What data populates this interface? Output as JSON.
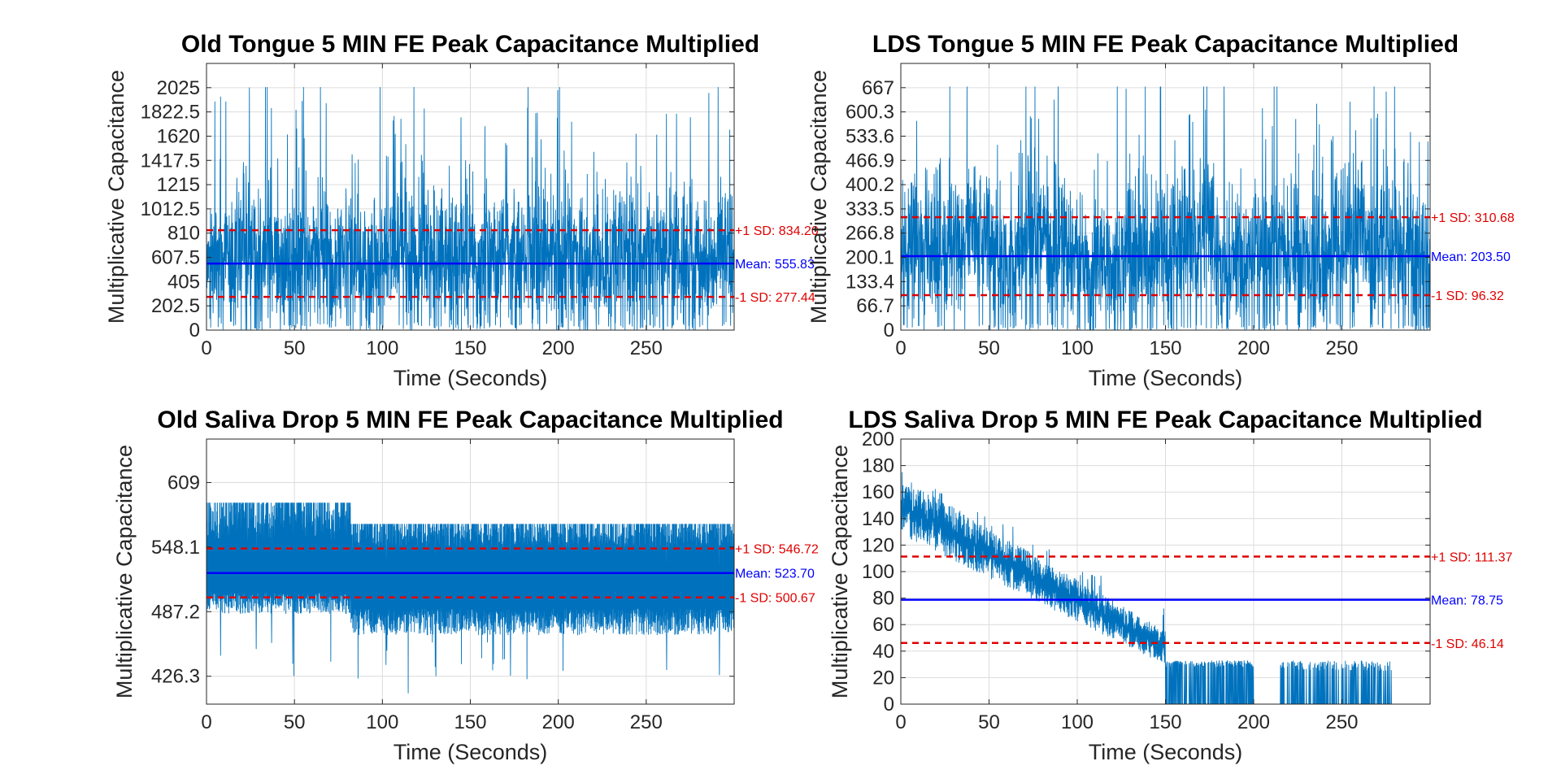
{
  "chart_data": [
    {
      "type": "line",
      "title": "Old Tongue 5 MIN FE Peak Capacitance Multiplied",
      "xlabel": "Time (Seconds)",
      "ylabel": "Multiplicative Capacitance",
      "xlim": [
        0,
        300
      ],
      "ylim": [
        0,
        2227.5
      ],
      "xticks": [
        0,
        50,
        100,
        150,
        200,
        250
      ],
      "xticklabels": [
        "0",
        "50",
        "100",
        "150",
        "200",
        "250"
      ],
      "yticks": [
        0,
        202.5,
        405,
        607.5,
        810,
        1012.5,
        1215,
        1417.5,
        1620,
        1822.5,
        2025
      ],
      "yticklabels": [
        "0",
        "202.5",
        "405",
        "607.5",
        "810",
        "1012.5",
        "1215",
        "1417.5",
        "1620",
        "1822.5",
        "2025"
      ],
      "grid": true,
      "series": [
        {
          "color": "#0072BD",
          "x": [
            0,
            300
          ],
          "y_range": [
            0,
            2030
          ]
        }
      ],
      "mean": {
        "value": 555.83,
        "label": "Mean: 555.83",
        "color": "#0000FF"
      },
      "plus_sd": {
        "value": 834.2,
        "label": "+1 SD: 834.20",
        "color": "#E00000"
      },
      "minus_sd": {
        "value": 277.44,
        "label": "-1 SD: 277.44",
        "color": "#E00000"
      }
    },
    {
      "type": "line",
      "title": "LDS Tongue 5 MIN FE Peak Capacitance Multiplied",
      "xlabel": "Time (Seconds)",
      "ylabel": "Multiplicative Capacitance",
      "xlim": [
        0,
        300
      ],
      "ylim": [
        0,
        733.7
      ],
      "xticks": [
        0,
        50,
        100,
        150,
        200,
        250
      ],
      "xticklabels": [
        "0",
        "50",
        "100",
        "150",
        "200",
        "250"
      ],
      "yticks": [
        0,
        66.7,
        133.4,
        200.1,
        266.8,
        333.5,
        400.2,
        466.9,
        533.6,
        600.3,
        667
      ],
      "yticklabels": [
        "0",
        "66.7",
        "133.4",
        "200.1",
        "266.8",
        "333.5",
        "400.2",
        "466.9",
        "533.6",
        "600.3",
        "667"
      ],
      "grid": true,
      "series": [
        {
          "color": "#0072BD",
          "x": [
            0,
            300
          ],
          "y_range": [
            0,
            670
          ]
        }
      ],
      "mean": {
        "value": 203.5,
        "label": "Mean: 203.50",
        "color": "#0000FF"
      },
      "plus_sd": {
        "value": 310.68,
        "label": "+1 SD: 310.68",
        "color": "#E00000"
      },
      "minus_sd": {
        "value": 96.32,
        "label": "-1 SD: 96.32",
        "color": "#E00000"
      }
    },
    {
      "type": "line",
      "title": "Old Saliva Drop 5 MIN FE Peak Capacitance Multiplied",
      "xlabel": "Time (Seconds)",
      "ylabel": "Multiplicative Capacitance",
      "xlim": [
        0,
        300
      ],
      "ylim": [
        400,
        650
      ],
      "xticks": [
        0,
        50,
        100,
        150,
        200,
        250
      ],
      "xticklabels": [
        "0",
        "50",
        "100",
        "150",
        "200",
        "250"
      ],
      "yticks": [
        426.3,
        487.2,
        548.1,
        609
      ],
      "yticklabels": [
        "426.3",
        "487.2",
        "548.1",
        "609"
      ],
      "grid": true,
      "series": [
        {
          "color": "#0072BD",
          "x": [
            0,
            300
          ],
          "y_range": [
            405,
            600
          ]
        }
      ],
      "mean": {
        "value": 523.7,
        "label": "Mean: 523.70",
        "color": "#0000FF"
      },
      "plus_sd": {
        "value": 546.72,
        "label": "+1 SD: 546.72",
        "color": "#E00000"
      },
      "minus_sd": {
        "value": 500.67,
        "label": "-1 SD: 500.67",
        "color": "#E00000"
      }
    },
    {
      "type": "line",
      "title": "LDS Saliva Drop 5 MIN FE Peak Capacitance Multiplied",
      "xlabel": "Time (Seconds)",
      "ylabel": "Multiplicative Capacitance",
      "xlim": [
        0,
        300
      ],
      "ylim": [
        0,
        200
      ],
      "xticks": [
        0,
        50,
        100,
        150,
        200,
        250
      ],
      "xticklabels": [
        "0",
        "50",
        "100",
        "150",
        "200",
        "250"
      ],
      "yticks": [
        0,
        20,
        40,
        60,
        80,
        100,
        120,
        140,
        160,
        180,
        200
      ],
      "yticklabels": [
        "0",
        "20",
        "40",
        "60",
        "80",
        "100",
        "120",
        "140",
        "160",
        "180",
        "200"
      ],
      "grid": true,
      "series": [
        {
          "color": "#0072BD",
          "x": [
            0,
            300
          ],
          "y_range": [
            0,
            175
          ]
        }
      ],
      "mean": {
        "value": 78.75,
        "label": "Mean: 78.75",
        "color": "#0000FF"
      },
      "plus_sd": {
        "value": 111.37,
        "label": "+1 SD: 111.37",
        "color": "#E00000"
      },
      "minus_sd": {
        "value": 46.14,
        "label": "-1 SD: 46.14",
        "color": "#E00000"
      }
    }
  ]
}
